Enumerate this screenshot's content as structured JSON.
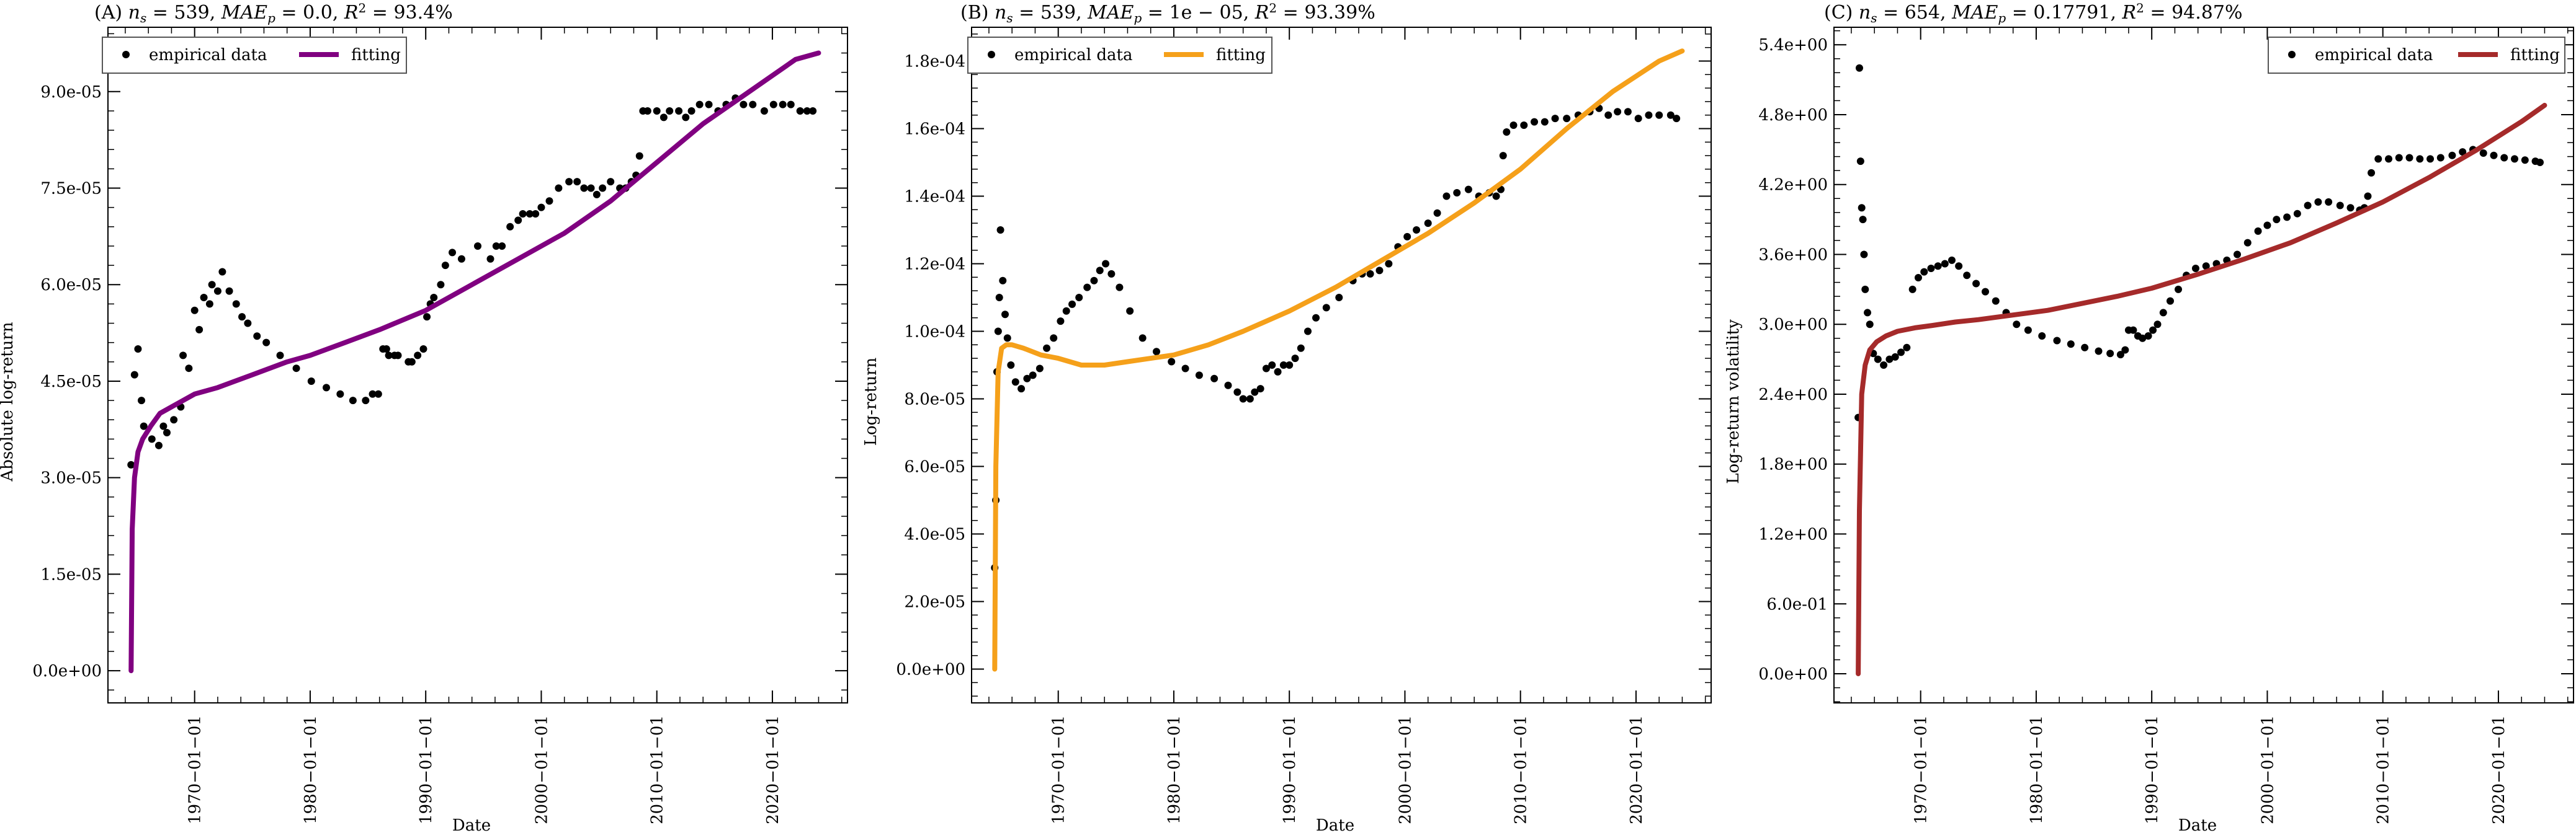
{
  "chart_data": [
    {
      "type": "line",
      "title": "(A) n_s = 539, MAE_p = 0.0, R² = 93.4%",
      "title_parts": {
        "prefix": "(A) ",
        "ns": "539",
        "mae": "0.0",
        "r2": "93.4%"
      },
      "xlabel": "Date",
      "ylabel": "Absolute log-return",
      "xlim": [
        1962.5,
        2026.5
      ],
      "ylim": [
        -5e-06,
        0.0001
      ],
      "x_ticks": [
        "1970−01−01",
        "1980−01−01",
        "1990−01−01",
        "2000−01−01",
        "2010−01−01",
        "2020−01−01"
      ],
      "y_ticks": [
        "0.0e+00",
        "1.5e-05",
        "3.0e-05",
        "4.5e-05",
        "6.0e-05",
        "7.5e-05",
        "9.0e-05"
      ],
      "y_tick_values": [
        0,
        1.5e-05,
        3e-05,
        4.5e-05,
        6e-05,
        7.5e-05,
        9e-05
      ],
      "legend": {
        "placement": "top-left",
        "entries": [
          "empirical data",
          "fitting"
        ]
      },
      "fit_color": "#800080",
      "series": [
        {
          "kind": "empirical",
          "x": [
            1964.5,
            1964.8,
            1965.1,
            1965.4,
            1965.6,
            1966.3,
            1966.9,
            1967.3,
            1967.6,
            1968.2,
            1968.8,
            1969.0,
            1969.5,
            1970.0,
            1970.4,
            1970.8,
            1971.3,
            1971.5,
            1972.0,
            1972.4,
            1973.0,
            1973.6,
            1974.1,
            1974.6,
            1975.4,
            1976.2,
            1977.4,
            1978.8,
            1980.1,
            1981.4,
            1982.6,
            1983.7,
            1984.8,
            1985.4,
            1985.9,
            1986.3,
            1986.6,
            1986.8,
            1987.3,
            1987.6,
            1988.5,
            1988.8,
            1989.3,
            1989.8,
            1990.1,
            1990.4,
            1990.7,
            1991.3,
            1991.7,
            1992.3,
            1993.1,
            1994.5,
            1995.6,
            1996.1,
            1996.6,
            1997.3,
            1998.0,
            1998.4,
            1999.0,
            1999.5,
            2000.0,
            2000.7,
            2001.5,
            2002.4,
            2003.1,
            2003.7,
            2004.3,
            2004.8,
            2005.3,
            2006.0,
            2006.8,
            2007.3,
            2007.8,
            2008.2,
            2008.5,
            2008.8,
            2009.2,
            2010.0,
            2010.6,
            2011.1,
            2011.9,
            2012.5,
            2013.0,
            2013.7,
            2014.5,
            2015.3,
            2016.0,
            2016.8,
            2017.5,
            2018.3,
            2019.3,
            2020.1,
            2020.9,
            2021.6,
            2022.4,
            2023.0,
            2023.5
          ],
          "y": [
            3.2e-05,
            4.6e-05,
            5e-05,
            4.2e-05,
            3.8e-05,
            3.6e-05,
            3.5e-05,
            3.8e-05,
            3.7e-05,
            3.9e-05,
            4.1e-05,
            4.9e-05,
            4.7e-05,
            5.6e-05,
            5.3e-05,
            5.8e-05,
            5.7e-05,
            6e-05,
            5.9e-05,
            6.2e-05,
            5.9e-05,
            5.7e-05,
            5.5e-05,
            5.4e-05,
            5.2e-05,
            5.1e-05,
            4.9e-05,
            4.7e-05,
            4.5e-05,
            4.4e-05,
            4.3e-05,
            4.2e-05,
            4.2e-05,
            4.3e-05,
            4.3e-05,
            5e-05,
            5e-05,
            4.9e-05,
            4.9e-05,
            4.9e-05,
            4.8e-05,
            4.8e-05,
            4.9e-05,
            5e-05,
            5.5e-05,
            5.7e-05,
            5.8e-05,
            6e-05,
            6.3e-05,
            6.5e-05,
            6.4e-05,
            6.6e-05,
            6.4e-05,
            6.6e-05,
            6.6e-05,
            6.9e-05,
            7e-05,
            7.1e-05,
            7.1e-05,
            7.1e-05,
            7.2e-05,
            7.3e-05,
            7.5e-05,
            7.6e-05,
            7.6e-05,
            7.5e-05,
            7.5e-05,
            7.4e-05,
            7.5e-05,
            7.6e-05,
            7.5e-05,
            7.5e-05,
            7.6e-05,
            7.7e-05,
            8e-05,
            8.7e-05,
            8.7e-05,
            8.7e-05,
            8.6e-05,
            8.7e-05,
            8.7e-05,
            8.6e-05,
            8.7e-05,
            8.8e-05,
            8.8e-05,
            8.7e-05,
            8.8e-05,
            8.9e-05,
            8.8e-05,
            8.8e-05,
            8.7e-05,
            8.8e-05,
            8.8e-05,
            8.8e-05,
            8.7e-05,
            8.7e-05,
            8.7e-05
          ]
        },
        {
          "kind": "fit",
          "x": [
            1964.5,
            1964.6,
            1964.8,
            1965.1,
            1965.5,
            1966.2,
            1967.0,
            1968.0,
            1970.0,
            1972.0,
            1975.0,
            1978.0,
            1980.0,
            1983.0,
            1986.0,
            1990.0,
            1994.0,
            1998.0,
            2002.0,
            2006.0,
            2010.0,
            2014.0,
            2018.0,
            2022.0,
            2024.0
          ],
          "y": [
            0.0,
            2.2e-05,
            3e-05,
            3.4e-05,
            3.6e-05,
            3.8e-05,
            4e-05,
            4.1e-05,
            4.3e-05,
            4.4e-05,
            4.6e-05,
            4.8e-05,
            4.9e-05,
            5.1e-05,
            5.3e-05,
            5.6e-05,
            6e-05,
            6.4e-05,
            6.8e-05,
            7.3e-05,
            7.9e-05,
            8.5e-05,
            9e-05,
            9.5e-05,
            9.6e-05
          ]
        }
      ]
    },
    {
      "type": "line",
      "title": "(B) n_s = 539, MAE_p = 1e − 05, R² = 93.39%",
      "title_parts": {
        "prefix": "(B) ",
        "ns": "539",
        "mae": "1e − 05",
        "r2": "93.39%"
      },
      "xlabel": "Date",
      "ylabel": "Log-return",
      "xlim": [
        1962.5,
        2026.5
      ],
      "ylim": [
        -1e-05,
        0.00019
      ],
      "x_ticks": [
        "1970−01−01",
        "1980−01−01",
        "1990−01−01",
        "2000−01−01",
        "2010−01−01",
        "2020−01−01"
      ],
      "y_ticks": [
        "0.0e+00",
        "2.0e-05",
        "4.0e-05",
        "6.0e-05",
        "8.0e-05",
        "1.0e-04",
        "1.2e-04",
        "1.4e-04",
        "1.6e-04",
        "1.8e-04"
      ],
      "y_tick_values": [
        0,
        2e-05,
        4e-05,
        6e-05,
        8e-05,
        0.0001,
        0.00012,
        0.00014,
        0.00016,
        0.00018
      ],
      "legend": {
        "placement": "top-left",
        "entries": [
          "empirical data",
          "fitting"
        ]
      },
      "fit_color": "#f5a01a",
      "series": [
        {
          "kind": "empirical",
          "x": [
            1964.5,
            1964.6,
            1964.7,
            1964.8,
            1964.9,
            1965.0,
            1965.2,
            1965.4,
            1965.6,
            1965.9,
            1966.3,
            1966.8,
            1967.3,
            1967.8,
            1968.4,
            1969.0,
            1969.6,
            1970.2,
            1970.7,
            1971.2,
            1971.8,
            1972.5,
            1973.1,
            1973.6,
            1974.1,
            1974.6,
            1975.3,
            1976.2,
            1977.3,
            1978.5,
            1979.8,
            1981.0,
            1982.2,
            1983.5,
            1984.7,
            1985.5,
            1986.0,
            1986.6,
            1987.0,
            1987.5,
            1988.0,
            1988.5,
            1989.0,
            1989.5,
            1990.0,
            1990.5,
            1991.0,
            1991.6,
            1992.3,
            1993.2,
            1994.3,
            1995.5,
            1996.3,
            1997.0,
            1997.8,
            1998.6,
            1999.4,
            2000.2,
            2001.0,
            2002.0,
            2002.8,
            2003.6,
            2004.5,
            2005.5,
            2006.4,
            2007.3,
            2007.9,
            2008.3,
            2008.5,
            2008.8,
            2009.4,
            2010.3,
            2011.2,
            2012.1,
            2013.0,
            2014.0,
            2015.0,
            2016.0,
            2016.8,
            2017.6,
            2018.4,
            2019.3,
            2020.2,
            2021.1,
            2022.0,
            2023.0,
            2023.5
          ],
          "y": [
            3e-05,
            5e-05,
            8.8e-05,
            0.0001,
            0.00011,
            0.00013,
            0.000115,
            0.000105,
            9.8e-05,
            9e-05,
            8.5e-05,
            8.3e-05,
            8.6e-05,
            8.7e-05,
            8.9e-05,
            9.5e-05,
            9.8e-05,
            0.000103,
            0.000106,
            0.000108,
            0.00011,
            0.000113,
            0.000115,
            0.000118,
            0.00012,
            0.000117,
            0.000113,
            0.000106,
            9.8e-05,
            9.4e-05,
            9.1e-05,
            8.9e-05,
            8.7e-05,
            8.6e-05,
            8.4e-05,
            8.2e-05,
            8e-05,
            8e-05,
            8.2e-05,
            8.3e-05,
            8.9e-05,
            9e-05,
            8.8e-05,
            9e-05,
            9e-05,
            9.2e-05,
            9.5e-05,
            0.0001,
            0.000104,
            0.000107,
            0.00011,
            0.000115,
            0.000117,
            0.000117,
            0.000118,
            0.00012,
            0.000125,
            0.000128,
            0.00013,
            0.000132,
            0.000135,
            0.00014,
            0.000141,
            0.000142,
            0.00014,
            0.000141,
            0.00014,
            0.000142,
            0.000152,
            0.000159,
            0.000161,
            0.000161,
            0.000162,
            0.000162,
            0.000163,
            0.000163,
            0.000164,
            0.000165,
            0.000166,
            0.000164,
            0.000165,
            0.000165,
            0.000163,
            0.000164,
            0.000164,
            0.000164,
            0.000163
          ]
        },
        {
          "kind": "fit",
          "x": [
            1964.5,
            1964.6,
            1964.8,
            1965.1,
            1965.5,
            1966.0,
            1967.0,
            1968.5,
            1970.0,
            1972.0,
            1974.0,
            1976.0,
            1978.0,
            1980.0,
            1983.0,
            1986.0,
            1990.0,
            1994.0,
            1998.0,
            2002.0,
            2006.0,
            2010.0,
            2014.0,
            2018.0,
            2022.0,
            2024.0
          ],
          "y": [
            0.0,
            6e-05,
            8.8e-05,
            9.5e-05,
            9.6e-05,
            9.6e-05,
            9.5e-05,
            9.3e-05,
            9.2e-05,
            9e-05,
            9e-05,
            9.1e-05,
            9.2e-05,
            9.3e-05,
            9.6e-05,
            0.0001,
            0.000106,
            0.000113,
            0.000121,
            0.000129,
            0.000138,
            0.000148,
            0.00016,
            0.000171,
            0.00018,
            0.000183
          ]
        }
      ]
    },
    {
      "type": "line",
      "title": "(C) n_s = 654, MAE_p = 0.17791, R² = 94.87%",
      "title_parts": {
        "prefix": "(C) ",
        "ns": "654",
        "mae": "0.17791",
        "r2": "94.87%"
      },
      "xlabel": "Date",
      "ylabel": "Log-return volatility",
      "xlim": [
        1962.5,
        2026.5
      ],
      "ylim": [
        -0.25,
        5.55
      ],
      "x_ticks": [
        "1970−01−01",
        "1980−01−01",
        "1990−01−01",
        "2000−01−01",
        "2010−01−01",
        "2020−01−01"
      ],
      "y_ticks": [
        "0.0e+00",
        "6.0e-01",
        "1.2e+00",
        "1.8e+00",
        "2.4e+00",
        "3.0e+00",
        "3.6e+00",
        "4.2e+00",
        "4.8e+00",
        "5.4e+00"
      ],
      "y_tick_values": [
        0,
        0.6,
        1.2,
        1.8,
        2.4,
        3.0,
        3.6,
        4.2,
        4.8,
        5.4
      ],
      "legend": {
        "placement": "top-right",
        "entries": [
          "empirical data",
          "fitting"
        ]
      },
      "fit_color": "#a52a2a",
      "series": [
        {
          "kind": "empirical",
          "x": [
            1964.6,
            1964.7,
            1964.8,
            1964.9,
            1965.0,
            1965.1,
            1965.2,
            1965.4,
            1965.6,
            1965.9,
            1966.3,
            1966.8,
            1967.3,
            1967.8,
            1968.3,
            1968.8,
            1969.3,
            1969.8,
            1970.3,
            1970.9,
            1971.5,
            1972.1,
            1972.7,
            1973.3,
            1974.0,
            1974.8,
            1975.6,
            1976.5,
            1977.4,
            1978.3,
            1979.3,
            1980.5,
            1981.8,
            1983.0,
            1984.2,
            1985.4,
            1986.4,
            1987.3,
            1987.7,
            1988.0,
            1988.4,
            1988.8,
            1989.2,
            1989.7,
            1990.1,
            1990.5,
            1991.0,
            1991.6,
            1992.3,
            1993.0,
            1993.8,
            1994.7,
            1995.6,
            1996.5,
            1997.4,
            1998.3,
            1999.2,
            2000.0,
            2000.8,
            2001.7,
            2002.6,
            2003.5,
            2004.4,
            2005.3,
            2006.3,
            2007.2,
            2008.0,
            2008.4,
            2008.7,
            2009.0,
            2009.6,
            2010.5,
            2011.4,
            2012.3,
            2013.2,
            2014.1,
            2015.0,
            2016.0,
            2016.9,
            2017.8,
            2018.7,
            2019.6,
            2020.5,
            2021.4,
            2022.3,
            2023.2,
            2023.6
          ],
          "y": [
            2.2,
            5.2,
            4.4,
            4.0,
            3.9,
            3.6,
            3.3,
            3.1,
            3.0,
            2.75,
            2.7,
            2.65,
            2.7,
            2.72,
            2.76,
            2.8,
            3.3,
            3.4,
            3.45,
            3.48,
            3.5,
            3.52,
            3.55,
            3.5,
            3.42,
            3.35,
            3.28,
            3.2,
            3.1,
            3.0,
            2.95,
            2.9,
            2.86,
            2.83,
            2.8,
            2.77,
            2.75,
            2.74,
            2.78,
            2.95,
            2.95,
            2.9,
            2.88,
            2.9,
            2.95,
            3.0,
            3.1,
            3.2,
            3.3,
            3.42,
            3.48,
            3.5,
            3.52,
            3.55,
            3.6,
            3.7,
            3.8,
            3.85,
            3.9,
            3.92,
            3.95,
            4.02,
            4.05,
            4.05,
            4.02,
            4.0,
            3.98,
            4.0,
            4.1,
            4.3,
            4.42,
            4.42,
            4.43,
            4.43,
            4.42,
            4.42,
            4.43,
            4.45,
            4.48,
            4.5,
            4.47,
            4.45,
            4.43,
            4.42,
            4.41,
            4.4,
            4.39
          ]
        },
        {
          "kind": "fit",
          "x": [
            1964.6,
            1964.7,
            1964.9,
            1965.2,
            1965.6,
            1966.2,
            1967.0,
            1968.0,
            1969.5,
            1971.0,
            1973.0,
            1975.0,
            1978.0,
            1981.0,
            1984.0,
            1987.0,
            1990.0,
            1994.0,
            1998.0,
            2002.0,
            2006.0,
            2010.0,
            2014.0,
            2018.0,
            2022.0,
            2024.0
          ],
          "y": [
            0.0,
            1.4,
            2.4,
            2.65,
            2.78,
            2.85,
            2.9,
            2.94,
            2.97,
            2.99,
            3.02,
            3.04,
            3.08,
            3.12,
            3.18,
            3.24,
            3.31,
            3.43,
            3.56,
            3.7,
            3.87,
            4.05,
            4.26,
            4.49,
            4.74,
            4.88
          ]
        }
      ]
    }
  ]
}
